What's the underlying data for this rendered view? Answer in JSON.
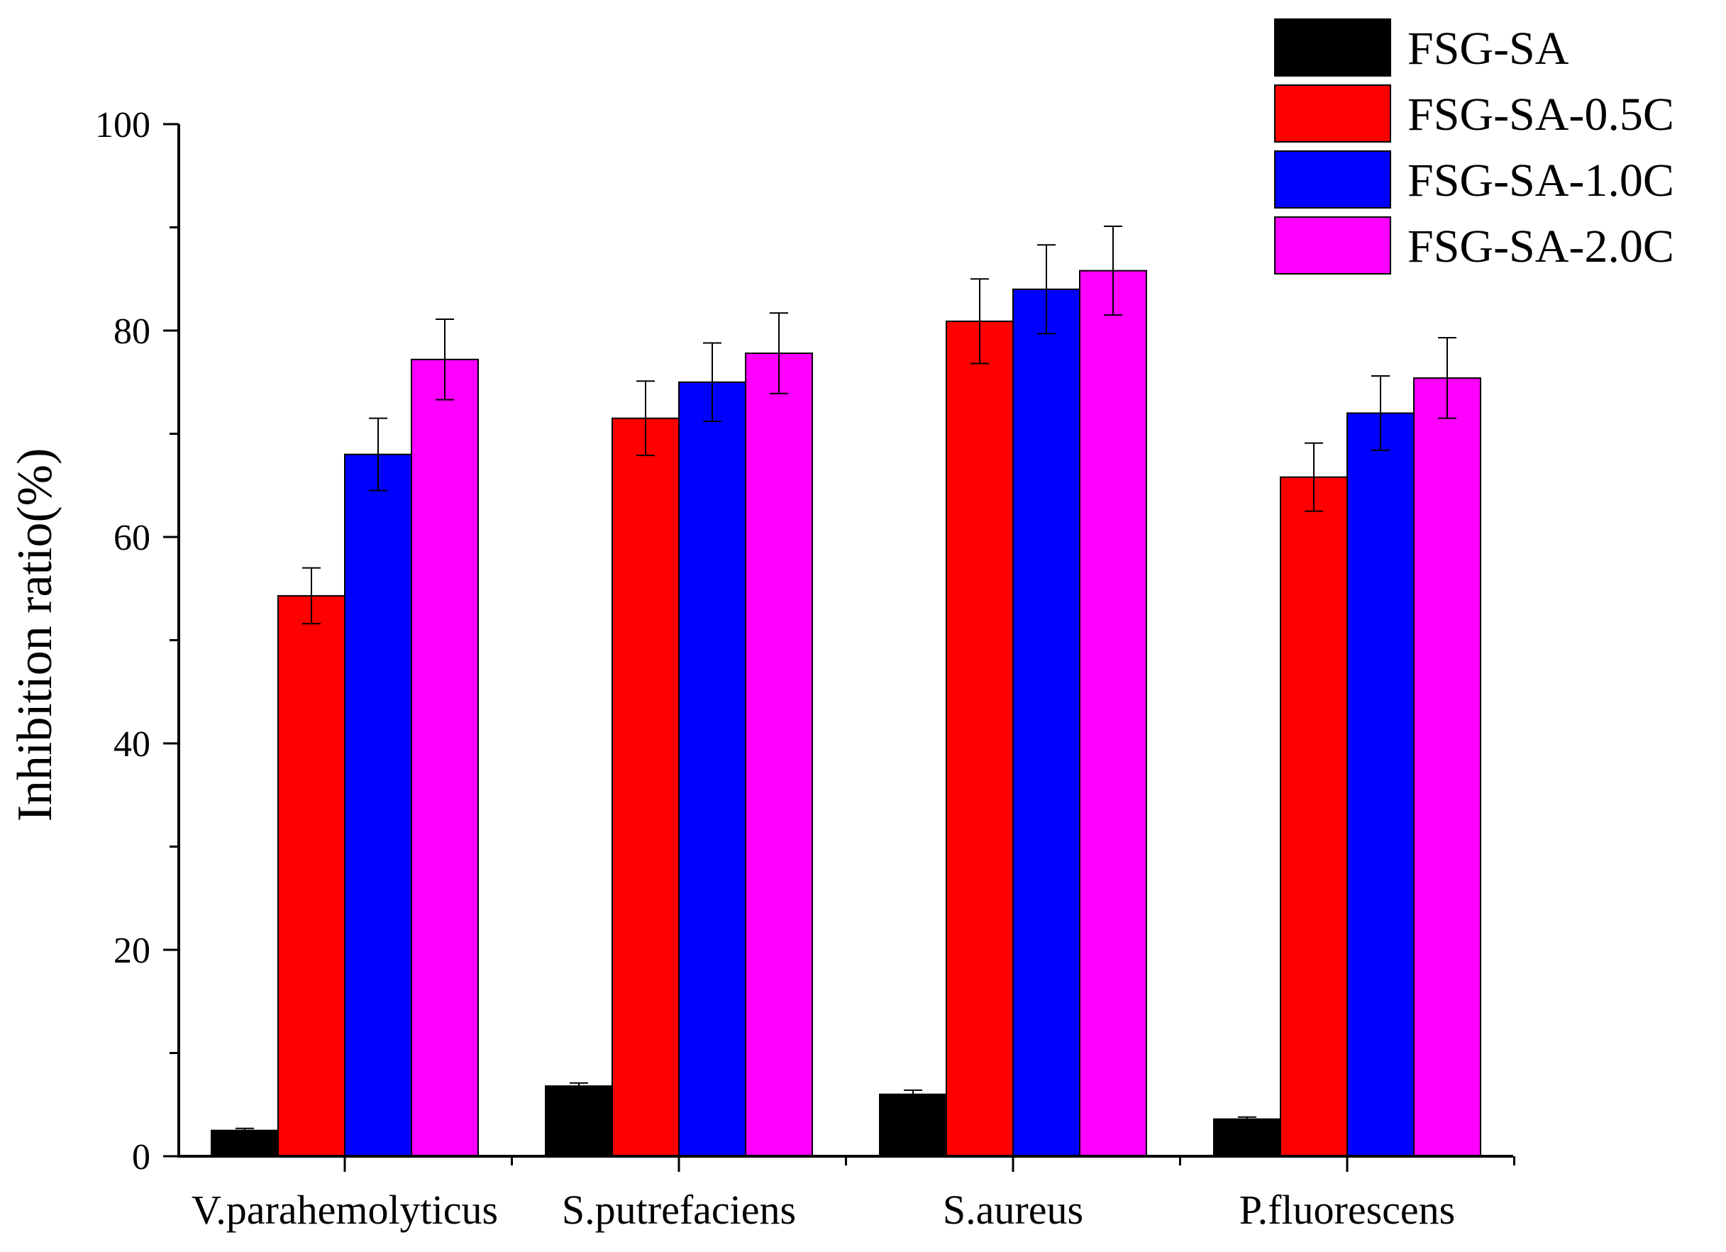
{
  "chart_data": {
    "type": "bar",
    "title": "",
    "xlabel": "",
    "ylabel": "Inhibition ratio(%)",
    "ylim": [
      0,
      100
    ],
    "yticks": [
      0,
      20,
      40,
      60,
      80,
      100
    ],
    "grid": false,
    "legend_position": "top-right",
    "categories": [
      "V.parahemolyticus",
      "S.putrefaciens",
      "S.aureus",
      "P.fluorescens"
    ],
    "series": [
      {
        "name": "FSG-SA",
        "color": "#000000",
        "values": [
          2.5,
          6.8,
          6.0,
          3.6
        ],
        "errors": [
          0.2,
          0.3,
          0.4,
          0.2
        ]
      },
      {
        "name": "FSG-SA-0.5C",
        "color": "#ff0000",
        "values": [
          54.3,
          71.5,
          80.9,
          65.8
        ],
        "errors": [
          2.7,
          3.6,
          4.1,
          3.3
        ]
      },
      {
        "name": "FSG-SA-1.0C",
        "color": "#0000ff",
        "values": [
          68.0,
          75.0,
          84.0,
          72.0
        ],
        "errors": [
          3.5,
          3.8,
          4.3,
          3.6
        ]
      },
      {
        "name": "FSG-SA-2.0C",
        "color": "#ff00ff",
        "values": [
          77.2,
          77.8,
          85.8,
          75.4
        ],
        "errors": [
          3.9,
          3.9,
          4.3,
          3.9
        ]
      }
    ]
  }
}
